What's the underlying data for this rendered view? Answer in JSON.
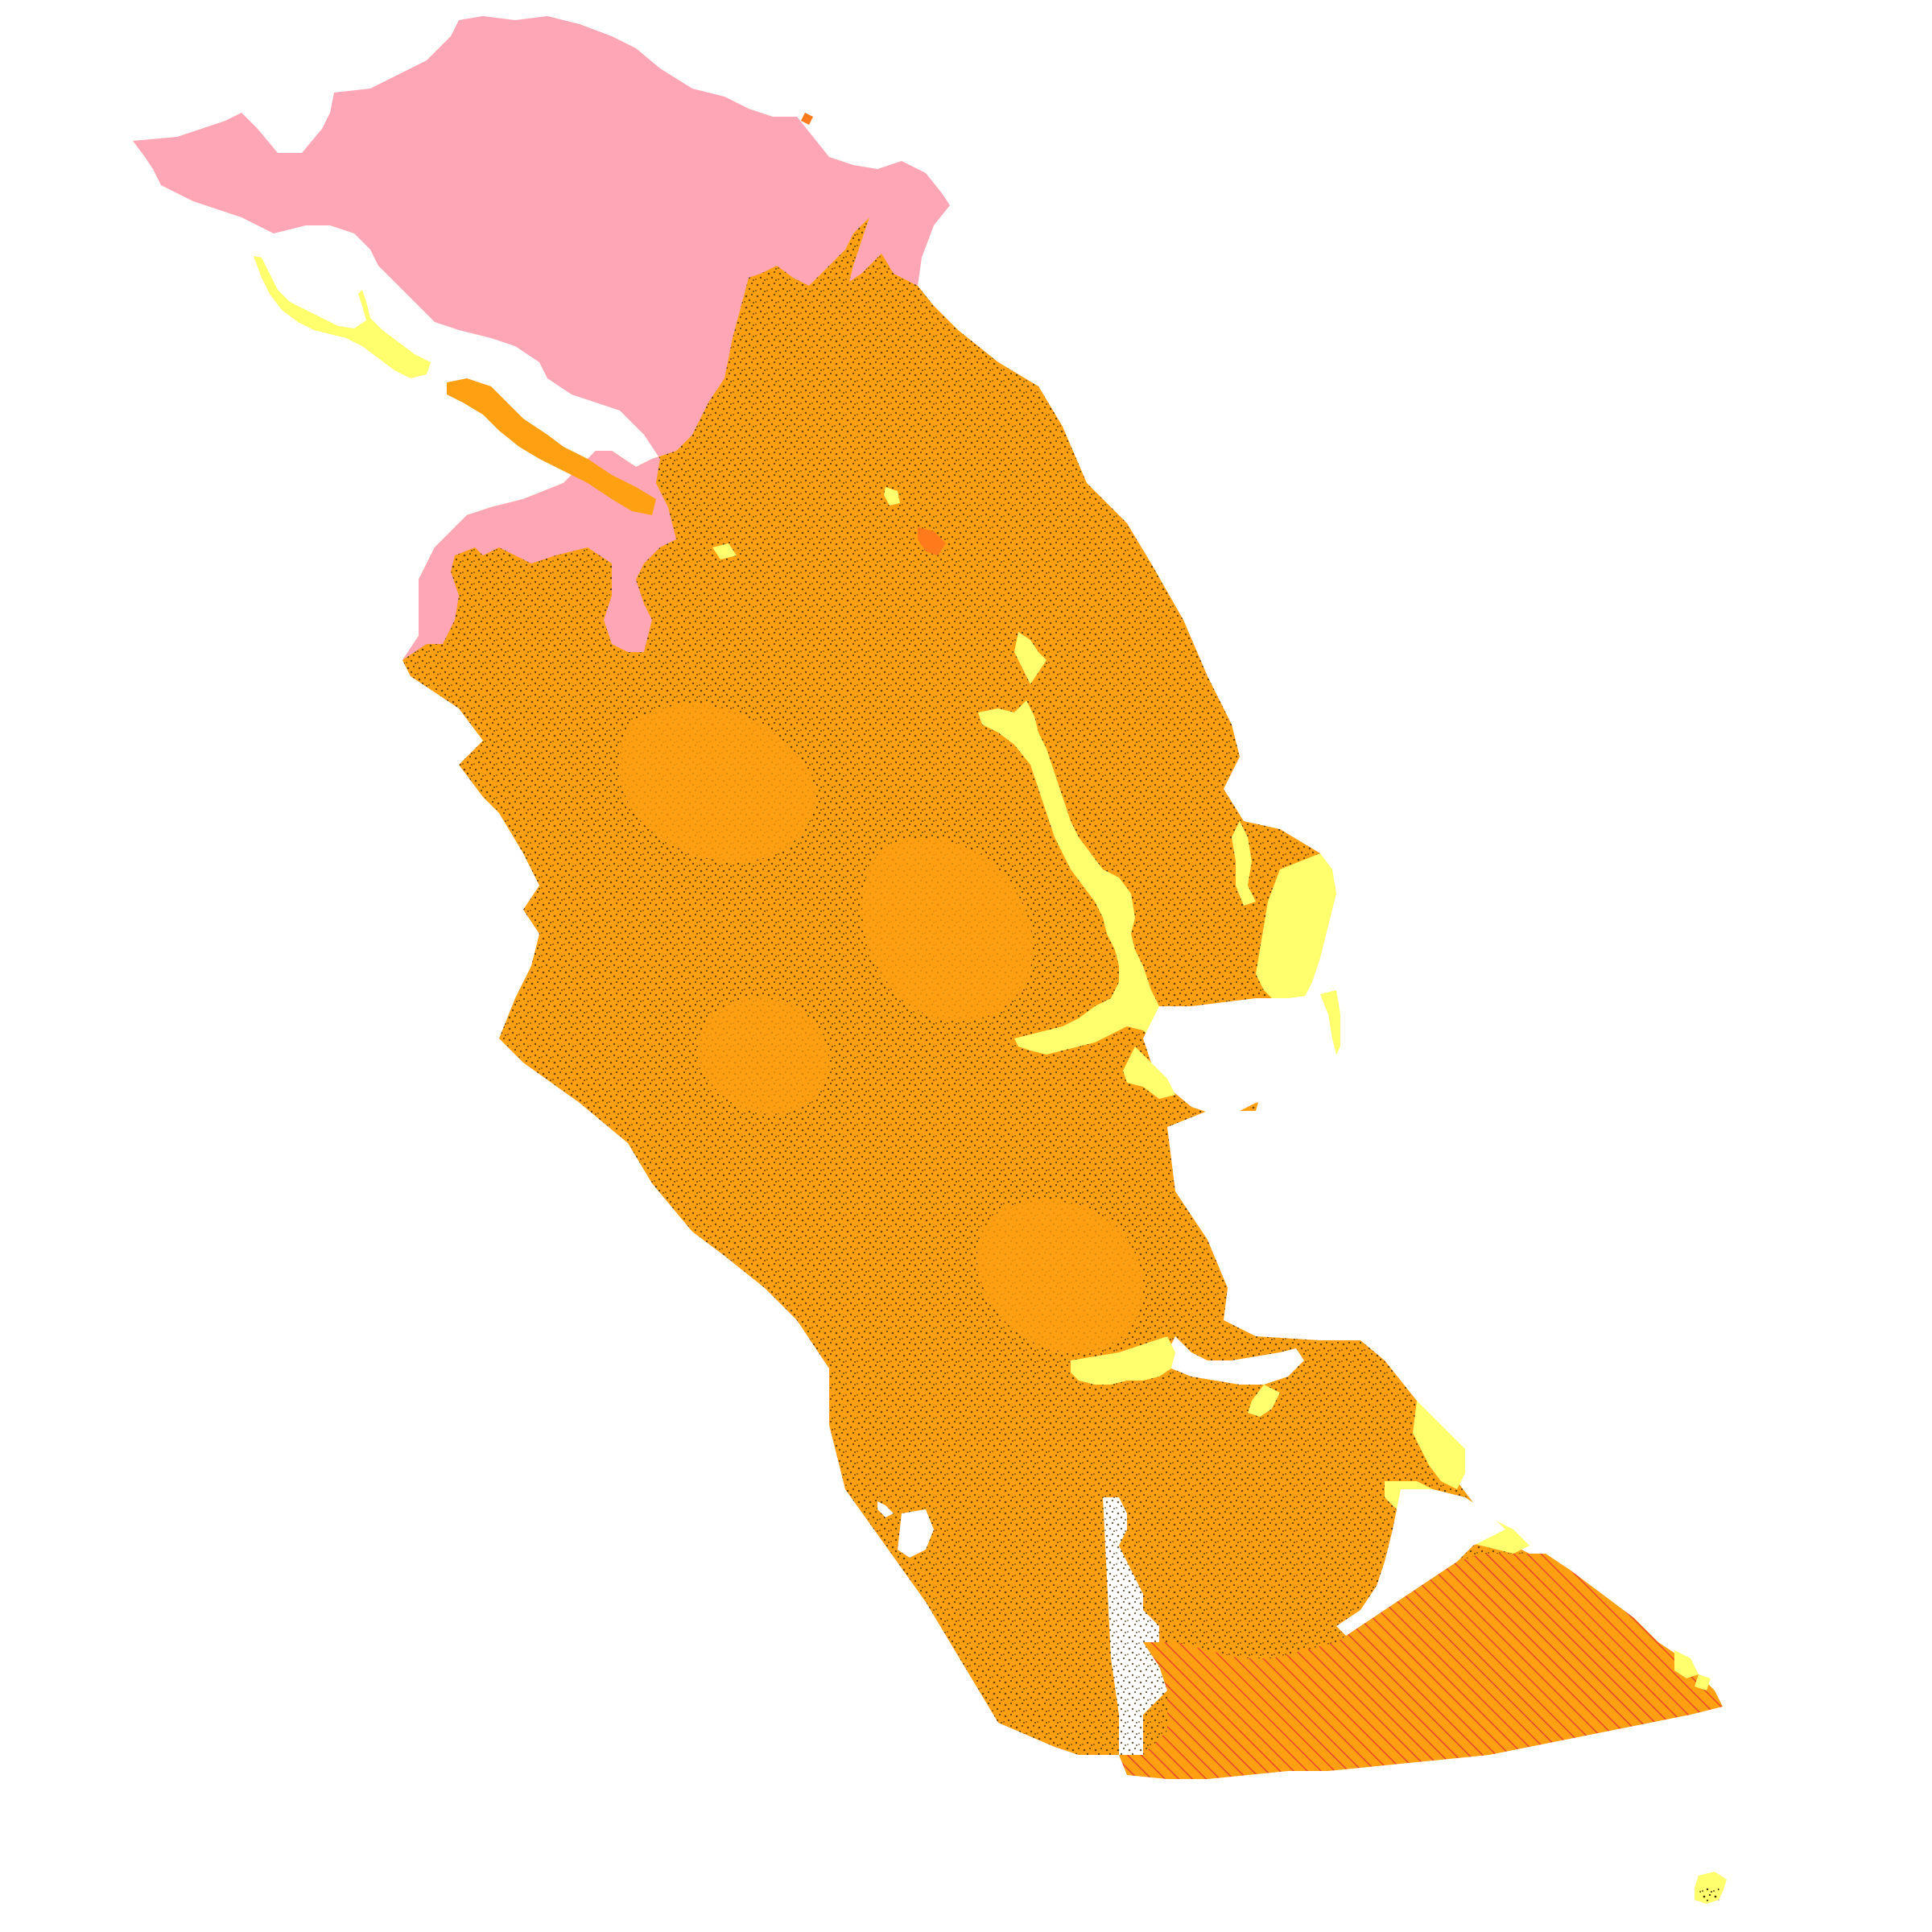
{
  "map": {
    "type": "geologic-map",
    "background_color": "#ffffff",
    "legend": "none",
    "labels": "none",
    "units": [
      {
        "id": "unit-pink",
        "color": "#ffa6b6",
        "pattern": "solid"
      },
      {
        "id": "unit-orange",
        "color": "#ff9f12",
        "pattern": "solid"
      },
      {
        "id": "unit-orange-stippled",
        "color": "#ff9f12",
        "pattern": "stipple",
        "pattern_color": "#3a2400"
      },
      {
        "id": "unit-yellow",
        "color": "#ffff6e",
        "pattern": "solid"
      },
      {
        "id": "unit-hatched",
        "color": "#ff9f12",
        "pattern": "diagonal-hatch",
        "pattern_color": "#e8452c"
      },
      {
        "id": "unit-dark-orange",
        "color": "#ff7a1a",
        "pattern": "solid"
      },
      {
        "id": "unit-yellow-stippled",
        "color": "#ffff6e",
        "pattern": "stipple",
        "pattern_color": "#3a2400"
      }
    ]
  }
}
